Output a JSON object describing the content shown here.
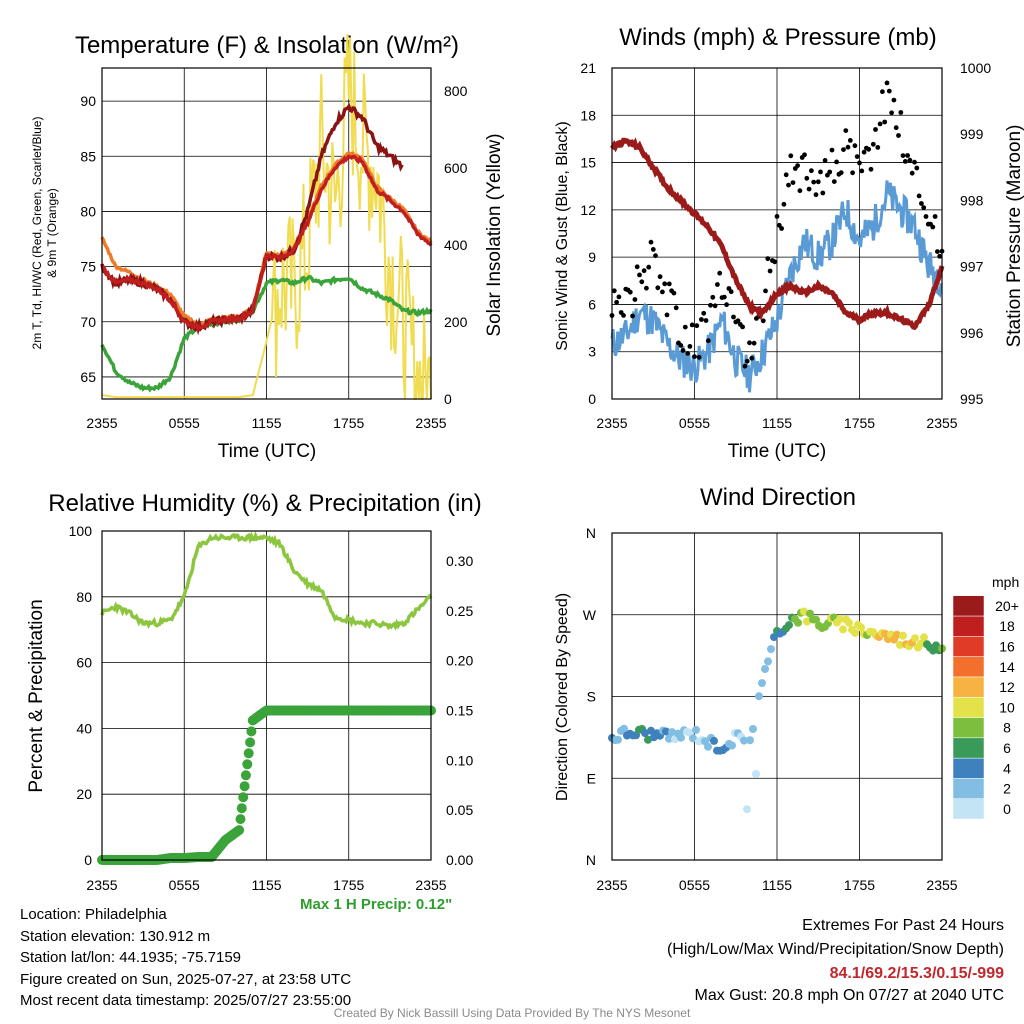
{
  "colors": {
    "temp": "#c01f1f",
    "heat_index": "#8a1414",
    "dew": "#3aa33a",
    "nine_m": "#ef7a28",
    "solar": "#f0dc50",
    "wind": "#5b9bd5",
    "gust": "#000000",
    "pressure": "#9b1a1a",
    "rh": "#8cc63f",
    "precip": "#3aa33a"
  },
  "time_ticks": [
    "2355",
    "0555",
    "1155",
    "1755",
    "2355"
  ],
  "panels": {
    "temp": {
      "title": "Temperature (F) & Insolation (W/m²)",
      "xlabel": "Time (UTC)",
      "ylabel_line1": "2m T, Td, HI/WC (Red, Green, Scarlet/Blue)",
      "ylabel_line2": "& 9m T (Orange)",
      "ylabel_right": "Solar Insolation (Yellow)",
      "left_ticks": [
        "65",
        "70",
        "75",
        "80",
        "85",
        "90"
      ],
      "right_ticks": [
        "0",
        "200",
        "400",
        "600",
        "800"
      ]
    },
    "wind": {
      "title": "Winds (mph) & Pressure (mb)",
      "xlabel": "Time (UTC)",
      "ylabel": "Sonic Wind & Gust (Blue, Black)",
      "ylabel_right": "Station Pressure (Maroon)",
      "left_ticks": [
        "0",
        "3",
        "6",
        "9",
        "12",
        "15",
        "18",
        "21"
      ],
      "right_ticks": [
        "995",
        "996",
        "997",
        "998",
        "999",
        "1000"
      ]
    },
    "rh": {
      "title": "Relative Humidity (%) & Precipitation (in)",
      "ylabel": "Percent & Precipitation",
      "left_ticks": [
        "0",
        "20",
        "40",
        "60",
        "80",
        "100"
      ],
      "right_ticks": [
        "0.00",
        "0.05",
        "0.10",
        "0.15",
        "0.20",
        "0.25",
        "0.30"
      ],
      "max_precip": "Max 1 H Precip: 0.12\""
    },
    "dir": {
      "title": "Wind Direction",
      "ylabel": "Direction (Colored By Speed)",
      "left_ticks": [
        "N",
        "E",
        "S",
        "W",
        "N"
      ],
      "legend_title": "mph",
      "legend_labels": [
        "0",
        "2",
        "4",
        "6",
        "8",
        "10",
        "12",
        "14",
        "16",
        "18",
        "20+"
      ],
      "legend_colors": [
        "#c2e4f4",
        "#82bde3",
        "#3f81bd",
        "#3a9a5a",
        "#7cbf3e",
        "#e4e24a",
        "#f7b342",
        "#f2702c",
        "#df3b26",
        "#c01f1f",
        "#9b1a1a"
      ]
    }
  },
  "footer": {
    "location": "Location: Philadelphia",
    "elevation": "Station elevation: 130.912 m",
    "latlon": "Station lat/lon: 44.1935; -75.7159",
    "created": "Figure created on Sun, 2025-07-27, at 23:58 UTC",
    "recent": "Most recent data timestamp: 2025/07/27 23:55:00"
  },
  "extremes": {
    "title": "Extremes For Past 24 Hours",
    "subtitle": "(High/Low/Max Wind/Precipitation/Snow Depth)",
    "values": "84.1/69.2/15.3/0.15/-999",
    "gust": "Max Gust: 20.8 mph On 07/27 at 2040 UTC"
  },
  "credit": "Created By Nick Bassill Using Data Provided By The NYS Mesonet",
  "chart_data": [
    {
      "type": "line",
      "title": "Temperature (F) & Insolation (W/m²)",
      "xlabel": "Time (UTC)",
      "x": [
        0,
        1,
        2,
        3,
        4,
        5,
        6,
        7,
        8,
        9,
        10,
        11,
        12,
        13,
        14,
        15,
        16,
        17,
        18,
        19,
        20,
        21,
        22,
        23,
        24
      ],
      "xticks": [
        "2355",
        "0555",
        "1155",
        "1755",
        "2355"
      ],
      "ylim": [
        63,
        93
      ],
      "y2lim": [
        0,
        860
      ],
      "series": [
        {
          "name": "2m T",
          "axis": "left",
          "values": [
            75.0,
            73.5,
            73.8,
            73.5,
            73.0,
            72.0,
            70.0,
            69.5,
            70.0,
            70.2,
            70.3,
            71.0,
            76.0,
            75.8,
            76.5,
            79.0,
            82.0,
            84.0,
            85.0,
            84.5,
            82.0,
            81.0,
            80.0,
            78.0,
            77.0
          ]
        },
        {
          "name": "9m T",
          "axis": "left",
          "values": [
            77.6,
            75.0,
            74.5,
            73.8,
            73.2,
            72.5,
            70.5,
            69.8,
            70.2,
            70.4,
            70.5,
            71.2,
            76.3,
            76.0,
            76.8,
            79.2,
            82.3,
            84.2,
            85.3,
            84.8,
            82.3,
            81.2,
            80.2,
            78.2,
            77.2
          ]
        },
        {
          "name": "HI/WC",
          "axis": "left",
          "values": [
            75.0,
            73.5,
            73.8,
            73.5,
            73.0,
            72.0,
            70.0,
            69.5,
            70.0,
            70.2,
            70.3,
            71.0,
            76.0,
            75.8,
            76.5,
            80.0,
            85.0,
            88.0,
            89.5,
            88.5,
            86.0,
            85.0,
            84.0,
            null,
            null
          ]
        },
        {
          "name": "Td",
          "axis": "left",
          "values": [
            68.0,
            65.5,
            64.5,
            64.0,
            64.0,
            65.0,
            68.5,
            69.5,
            69.8,
            70.0,
            70.2,
            71.0,
            73.5,
            73.8,
            73.5,
            74.0,
            73.5,
            73.8,
            74.0,
            73.0,
            72.5,
            72.0,
            71.0,
            70.8,
            71.0
          ]
        },
        {
          "name": "Solar",
          "axis": "right",
          "values": [
            10,
            5,
            5,
            5,
            5,
            5,
            5,
            5,
            5,
            5,
            5,
            10,
            150,
            300,
            280,
            400,
            650,
            500,
            800,
            650,
            600,
            350,
            200,
            50,
            20
          ]
        }
      ]
    },
    {
      "type": "line",
      "title": "Winds (mph) & Pressure (mb)",
      "xlabel": "Time (UTC)",
      "x": [
        0,
        1,
        2,
        3,
        4,
        5,
        6,
        7,
        8,
        9,
        10,
        11,
        12,
        13,
        14,
        15,
        16,
        17,
        18,
        19,
        20,
        21,
        22,
        23,
        24
      ],
      "xticks": [
        "2355",
        "0555",
        "1155",
        "1755",
        "2355"
      ],
      "ylim": [
        0,
        21
      ],
      "y2lim": [
        995,
        1000
      ],
      "series": [
        {
          "name": "Sonic Wind",
          "axis": "left",
          "values": [
            3.5,
            4.0,
            5.5,
            5.0,
            3.5,
            2.5,
            2.0,
            3.0,
            5.0,
            2.5,
            1.5,
            3.0,
            5.0,
            8.0,
            10.0,
            9.0,
            10.0,
            12.0,
            10.0,
            11.0,
            13.0,
            12.0,
            11.0,
            8.5,
            7.5
          ]
        },
        {
          "name": "Gust",
          "axis": "left",
          "values": [
            5.5,
            6.0,
            7.5,
            9.5,
            6.5,
            4.5,
            3.5,
            5.0,
            7.0,
            4.5,
            3.0,
            6.0,
            11.0,
            14.0,
            15.0,
            14.0,
            14.5,
            16.0,
            14.0,
            16.0,
            19.5,
            17.0,
            14.0,
            12.0,
            9.0
          ]
        },
        {
          "name": "Station Pressure",
          "axis": "right",
          "values": [
            998.8,
            998.9,
            998.8,
            998.5,
            998.2,
            998.0,
            997.8,
            997.6,
            997.3,
            996.8,
            996.4,
            996.3,
            996.6,
            996.7,
            996.6,
            996.7,
            996.6,
            996.3,
            996.2,
            996.3,
            996.3,
            996.2,
            996.1,
            996.4,
            997.0
          ]
        }
      ]
    },
    {
      "type": "line",
      "title": "Relative Humidity (%) & Precipitation (in)",
      "x": [
        0,
        1,
        2,
        3,
        4,
        5,
        6,
        7,
        8,
        9,
        10,
        11,
        12,
        13,
        14,
        15,
        16,
        17,
        18,
        19,
        20,
        21,
        22,
        23,
        24
      ],
      "xticks": [
        "2355",
        "0555",
        "1155",
        "1755",
        "2355"
      ],
      "ylim": [
        0,
        100
      ],
      "y2lim": [
        0,
        0.33
      ],
      "series": [
        {
          "name": "RH",
          "axis": "left",
          "values": [
            75,
            77,
            75,
            72,
            72,
            73,
            80,
            95,
            98,
            98,
            98,
            98,
            98,
            96,
            88,
            84,
            82,
            74,
            73,
            72,
            72,
            71,
            72,
            76,
            80
          ]
        },
        {
          "name": "Precip",
          "axis": "right",
          "values": [
            0,
            0,
            0,
            0,
            0,
            0.002,
            0.002,
            0.003,
            0.003,
            0.02,
            0.03,
            0.14,
            0.15,
            0.15,
            0.15,
            0.15,
            0.15,
            0.15,
            0.15,
            0.15,
            0.15,
            0.15,
            0.15,
            0.15,
            0.15
          ]
        }
      ]
    },
    {
      "type": "scatter",
      "title": "Wind Direction",
      "x": [
        0,
        1,
        2,
        3,
        4,
        5,
        6,
        7,
        8,
        9,
        10,
        11,
        12,
        13,
        14,
        15,
        16,
        17,
        18,
        19,
        20,
        21,
        22,
        23,
        24
      ],
      "xticks": [
        "2355",
        "0555",
        "1155",
        "1755",
        "2355"
      ],
      "ylim": [
        0,
        360
      ],
      "yticks": [
        "N",
        "E",
        "S",
        "W",
        "N"
      ],
      "series": [
        {
          "name": "Direction",
          "values": [
            135,
            140,
            140,
            138,
            135,
            138,
            140,
            130,
            125,
            135,
            130,
            200,
            250,
            265,
            270,
            260,
            262,
            258,
            255,
            250,
            247,
            243,
            240,
            238,
            236
          ]
        },
        {
          "name": "Speed",
          "values": [
            3.5,
            4.0,
            5.5,
            5.0,
            3.5,
            2.5,
            2.0,
            3.0,
            5.0,
            2.5,
            1.5,
            3.0,
            5.0,
            8.0,
            10.0,
            9.0,
            10.0,
            12.0,
            10.0,
            11.0,
            13.0,
            12.0,
            11.0,
            8.5,
            7.5
          ]
        }
      ]
    }
  ]
}
